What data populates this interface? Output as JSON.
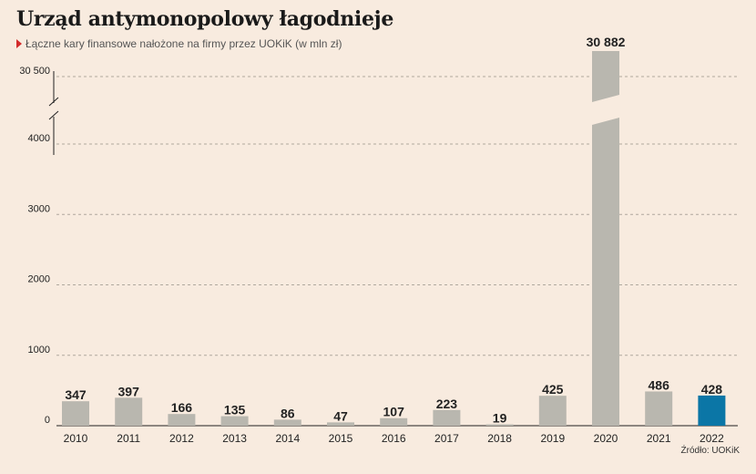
{
  "header": {
    "title": "Urząd antymonopolowy łagodnieje",
    "subtitle": "Łączne kary finansowe nałożone na firmy przez UOKiK (w mln zł)",
    "source": "Źródło: UOKiK"
  },
  "chart_data": {
    "type": "bar",
    "categories": [
      "2010",
      "2011",
      "2012",
      "2013",
      "2014",
      "2015",
      "2016",
      "2017",
      "2018",
      "2019",
      "2020",
      "2021",
      "2022"
    ],
    "values": [
      347,
      397,
      166,
      135,
      86,
      47,
      107,
      223,
      19,
      425,
      30882,
      486,
      428
    ],
    "value_labels": [
      "347",
      "397",
      "166",
      "135",
      "86",
      "47",
      "107",
      "223",
      "19",
      "425",
      "30 882",
      "486",
      "428"
    ],
    "y_ticks": [
      0,
      1000,
      2000,
      3000,
      4000
    ],
    "y_tick_labels": [
      "0",
      "1000",
      "2000",
      "3000",
      "4000"
    ],
    "y_break_tick": 30500,
    "y_break_tick_label": "30 500",
    "axis_break": true,
    "grid": true,
    "highlight_category": "2022",
    "colors": {
      "bar": "#b9b7af",
      "highlight": "#0b76a6",
      "grid": "#b0a89e"
    }
  }
}
